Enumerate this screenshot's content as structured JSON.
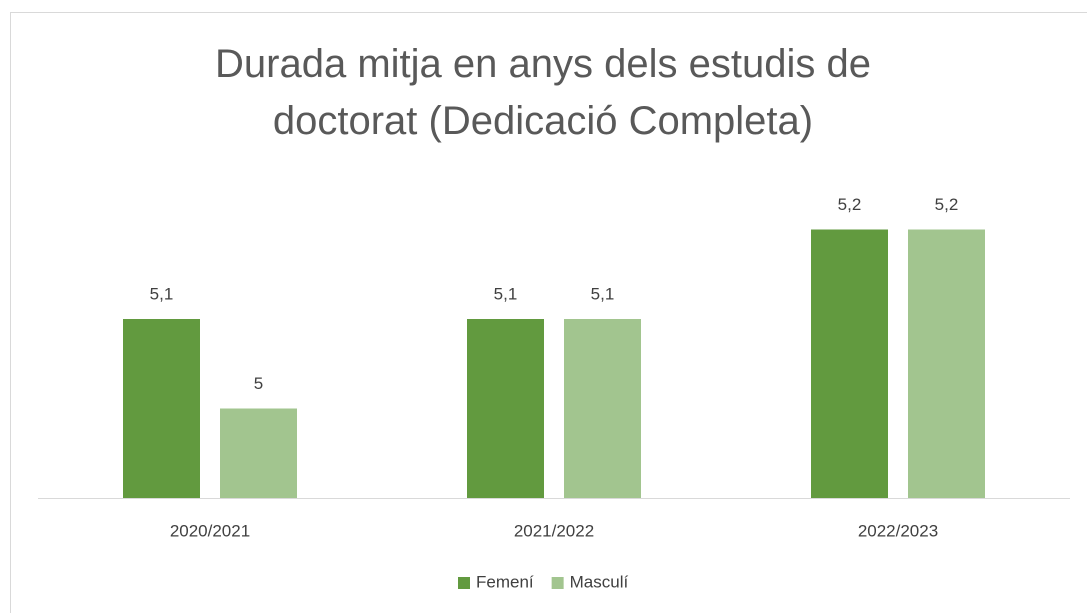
{
  "chart_data": {
    "type": "bar",
    "title": "Durada mitja en anys dels estudis de doctorat (Dedicació Completa)",
    "categories": [
      "2020/2021",
      "2021/2022",
      "2022/2023"
    ],
    "series": [
      {
        "name": "Femení",
        "color": "#629a3f",
        "values": [
          5.1,
          5.1,
          5.2
        ],
        "value_labels": [
          "5,1",
          "5,1",
          "5,2"
        ]
      },
      {
        "name": "Masculí",
        "color": "#a2c58f",
        "values": [
          5.0,
          5.1,
          5.2
        ],
        "value_labels": [
          "5",
          "5,1",
          "5,2"
        ]
      }
    ],
    "ylim": [
      4.9,
      5.3
    ],
    "legend": "bottom"
  }
}
